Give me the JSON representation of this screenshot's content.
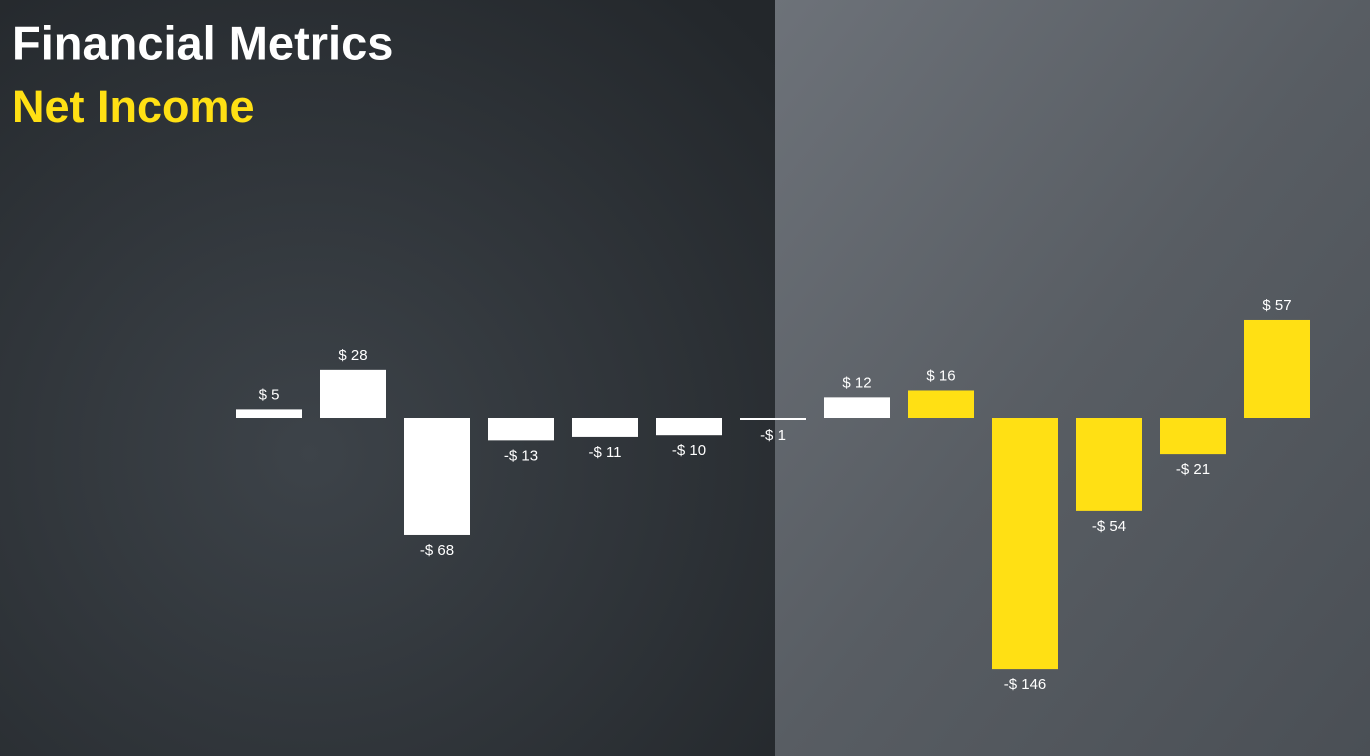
{
  "chart_data": {
    "type": "bar",
    "title": "Financial Metrics",
    "subtitle": "Net Income",
    "values": [
      5,
      28,
      -68,
      -13,
      -11,
      -10,
      -1,
      12,
      16,
      -146,
      -54,
      -21,
      57
    ],
    "value_labels": [
      "$ 5",
      "$ 28",
      "-$ 68",
      "-$ 13",
      "-$ 11",
      "-$ 10",
      "-$ 1",
      "$ 12",
      "$ 16",
      "-$ 146",
      "-$ 54",
      "-$ 21",
      "$ 57"
    ],
    "colors": [
      "#ffffff",
      "#ffffff",
      "#ffffff",
      "#ffffff",
      "#ffffff",
      "#ffffff",
      "#ffffff",
      "#ffffff",
      "#ffe014",
      "#ffe014",
      "#ffe014",
      "#ffe014",
      "#ffe014"
    ]
  }
}
